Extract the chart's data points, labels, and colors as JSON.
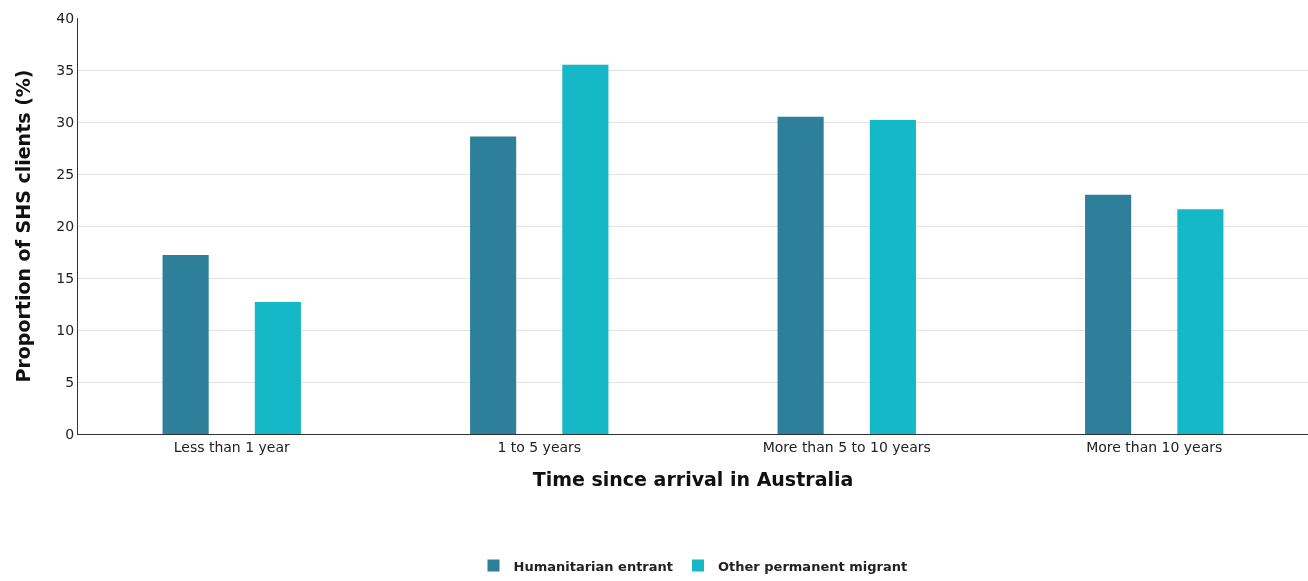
{
  "chart_data": {
    "type": "bar",
    "xlabel": "Time since arrival in Australia",
    "ylabel": "Proportion of SHS clients (%)",
    "categories": [
      "Less than 1 year",
      "1 to 5 years",
      "More than 5 to 10 years",
      "More than 10 years"
    ],
    "series": [
      {
        "name": "Humanitarian entrant",
        "color": "#2e7f99",
        "values": [
          17.2,
          28.6,
          30.5,
          23.0
        ]
      },
      {
        "name": "Other permanent migrant",
        "color": "#15b8c6",
        "values": [
          12.7,
          35.5,
          30.2,
          21.6
        ]
      }
    ],
    "ylim": [
      0,
      40
    ],
    "yticks": [
      0,
      5,
      10,
      15,
      20,
      25,
      30,
      35,
      40
    ],
    "grid": "y",
    "legend": "bottom"
  }
}
